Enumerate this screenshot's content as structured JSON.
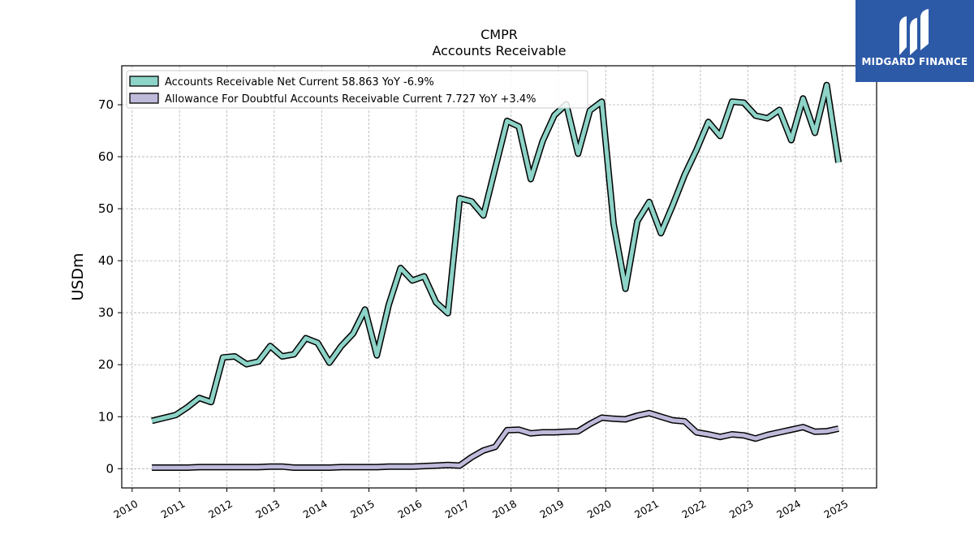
{
  "chart_data": {
    "type": "line",
    "title": "CMPR",
    "subtitle": "Accounts Receivable",
    "ylabel": "USDm",
    "xlabel": "",
    "ylim": [
      -3.7,
      77.5
    ],
    "xlim": [
      2009.78,
      2025.72
    ],
    "yticks": [
      0,
      10,
      20,
      30,
      40,
      50,
      60,
      70
    ],
    "xticks": [
      "2010",
      "2011",
      "2012",
      "2013",
      "2014",
      "2015",
      "2016",
      "2017",
      "2018",
      "2019",
      "2020",
      "2021",
      "2022",
      "2023",
      "2024",
      "2025"
    ],
    "grid": true,
    "legend_position": "top-left",
    "series": [
      {
        "name": "Accounts Receivable Net Current",
        "legend_label": "Accounts Receivable Net Current  58.863 YoY -6.9%",
        "color": "#8dd3c7",
        "points": [
          [
            "2010-06",
            9.2
          ],
          [
            "2010-12",
            10.3
          ],
          [
            "2011-03",
            11.8
          ],
          [
            "2011-06",
            13.6
          ],
          [
            "2011-09",
            12.8
          ],
          [
            "2011-12",
            21.4
          ],
          [
            "2012-03",
            21.6
          ],
          [
            "2012-06",
            20.1
          ],
          [
            "2012-09",
            20.6
          ],
          [
            "2012-12",
            23.6
          ],
          [
            "2013-03",
            21.6
          ],
          [
            "2013-06",
            22.0
          ],
          [
            "2013-09",
            25.1
          ],
          [
            "2013-12",
            24.2
          ],
          [
            "2014-03",
            20.4
          ],
          [
            "2014-06",
            23.6
          ],
          [
            "2014-09",
            26.0
          ],
          [
            "2014-12",
            30.6
          ],
          [
            "2015-03",
            21.8
          ],
          [
            "2015-06",
            31.5
          ],
          [
            "2015-09",
            38.6
          ],
          [
            "2015-12",
            36.2
          ],
          [
            "2016-03",
            37.0
          ],
          [
            "2016-06",
            32.0
          ],
          [
            "2016-09",
            29.9
          ],
          [
            "2016-12",
            52.0
          ],
          [
            "2017-03",
            51.4
          ],
          [
            "2017-06",
            48.7
          ],
          [
            "2017-09",
            57.8
          ],
          [
            "2017-12",
            66.9
          ],
          [
            "2018-03",
            65.8
          ],
          [
            "2018-06",
            55.7
          ],
          [
            "2018-09",
            63.0
          ],
          [
            "2018-12",
            68.0
          ],
          [
            "2019-03",
            70.1
          ],
          [
            "2019-06",
            60.6
          ],
          [
            "2019-09",
            68.9
          ],
          [
            "2019-12",
            70.6
          ],
          [
            "2020-03",
            47.1
          ],
          [
            "2020-06",
            34.6
          ],
          [
            "2020-09",
            47.6
          ],
          [
            "2020-12",
            51.3
          ],
          [
            "2021-03",
            45.3
          ],
          [
            "2021-06",
            50.7
          ],
          [
            "2021-09",
            56.5
          ],
          [
            "2021-12",
            61.3
          ],
          [
            "2022-03",
            66.7
          ],
          [
            "2022-06",
            64.0
          ],
          [
            "2022-09",
            70.6
          ],
          [
            "2022-12",
            70.4
          ],
          [
            "2023-03",
            67.9
          ],
          [
            "2023-06",
            67.4
          ],
          [
            "2023-09",
            69.0
          ],
          [
            "2023-12",
            63.2
          ],
          [
            "2024-03",
            71.2
          ],
          [
            "2024-06",
            64.6
          ],
          [
            "2024-09",
            73.8
          ],
          [
            "2024-12",
            58.9
          ]
        ]
      },
      {
        "name": "Allowance For Doubtful Accounts Receivable Current",
        "legend_label": "Allowance For Doubtful Accounts Receivable Current  7.727 YoY +3.4%",
        "color": "#bebada",
        "points": [
          [
            "2010-06",
            0.2
          ],
          [
            "2010-12",
            0.2
          ],
          [
            "2011-03",
            0.2
          ],
          [
            "2011-06",
            0.3
          ],
          [
            "2011-09",
            0.3
          ],
          [
            "2011-12",
            0.3
          ],
          [
            "2012-03",
            0.3
          ],
          [
            "2012-06",
            0.3
          ],
          [
            "2012-09",
            0.3
          ],
          [
            "2012-12",
            0.4
          ],
          [
            "2013-03",
            0.4
          ],
          [
            "2013-06",
            0.2
          ],
          [
            "2013-09",
            0.2
          ],
          [
            "2013-12",
            0.2
          ],
          [
            "2014-03",
            0.2
          ],
          [
            "2014-06",
            0.3
          ],
          [
            "2014-09",
            0.3
          ],
          [
            "2014-12",
            0.3
          ],
          [
            "2015-03",
            0.3
          ],
          [
            "2015-06",
            0.4
          ],
          [
            "2015-09",
            0.4
          ],
          [
            "2015-12",
            0.4
          ],
          [
            "2016-03",
            0.5
          ],
          [
            "2016-06",
            0.6
          ],
          [
            "2016-09",
            0.7
          ],
          [
            "2016-12",
            0.6
          ],
          [
            "2017-03",
            2.2
          ],
          [
            "2017-06",
            3.5
          ],
          [
            "2017-09",
            4.2
          ],
          [
            "2017-12",
            7.4
          ],
          [
            "2018-03",
            7.5
          ],
          [
            "2018-06",
            6.8
          ],
          [
            "2018-09",
            7.0
          ],
          [
            "2018-12",
            7.0
          ],
          [
            "2019-03",
            7.1
          ],
          [
            "2019-06",
            7.2
          ],
          [
            "2019-09",
            8.6
          ],
          [
            "2019-12",
            9.8
          ],
          [
            "2020-03",
            9.6
          ],
          [
            "2020-06",
            9.5
          ],
          [
            "2020-09",
            10.2
          ],
          [
            "2020-12",
            10.7
          ],
          [
            "2021-03",
            10.0
          ],
          [
            "2021-06",
            9.3
          ],
          [
            "2021-09",
            9.1
          ],
          [
            "2021-12",
            7.0
          ],
          [
            "2022-03",
            6.6
          ],
          [
            "2022-06",
            6.1
          ],
          [
            "2022-09",
            6.6
          ],
          [
            "2022-12",
            6.4
          ],
          [
            "2023-03",
            5.8
          ],
          [
            "2023-06",
            6.5
          ],
          [
            "2023-09",
            7.0
          ],
          [
            "2023-12",
            7.5
          ],
          [
            "2024-03",
            8.0
          ],
          [
            "2024-06",
            7.1
          ],
          [
            "2024-09",
            7.2
          ],
          [
            "2024-12",
            7.7
          ]
        ]
      }
    ]
  },
  "logo": {
    "text": "MIDGARD FINANCE",
    "background": "#2d5aa7"
  }
}
